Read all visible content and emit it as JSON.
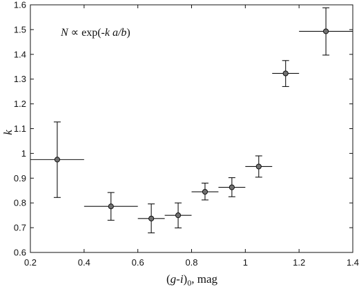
{
  "chart_data": {
    "type": "scatter",
    "xlabel_parts": [
      "(",
      "g-i",
      ")",
      "0",
      ", mag"
    ],
    "ylabel": "k",
    "annotation_parts": [
      "N",
      " ∝ exp(-",
      "k a/b",
      ")"
    ],
    "xlim": [
      0.2,
      1.4
    ],
    "ylim": [
      0.6,
      1.6
    ],
    "xticks": [
      "0.2",
      "0.4",
      "0.6",
      "0.8",
      "1",
      "1.2",
      "1.4"
    ],
    "yticks": [
      "0.6",
      "0.7",
      "0.8",
      "0.9",
      "1",
      "1.1",
      "1.2",
      "1.3",
      "1.4",
      "1.5",
      "1.6"
    ],
    "grid": false,
    "points": [
      {
        "x": 0.3,
        "y": 0.975,
        "x_lo": 0.2,
        "x_hi": 0.4,
        "y_lo": 0.822,
        "y_hi": 1.127
      },
      {
        "x": 0.5,
        "y": 0.786,
        "x_lo": 0.4,
        "x_hi": 0.6,
        "y_lo": 0.73,
        "y_hi": 0.842
      },
      {
        "x": 0.65,
        "y": 0.737,
        "x_lo": 0.6,
        "x_hi": 0.7,
        "y_lo": 0.679,
        "y_hi": 0.796
      },
      {
        "x": 0.75,
        "y": 0.75,
        "x_lo": 0.7,
        "x_hi": 0.8,
        "y_lo": 0.699,
        "y_hi": 0.8
      },
      {
        "x": 0.85,
        "y": 0.845,
        "x_lo": 0.8,
        "x_hi": 0.9,
        "y_lo": 0.812,
        "y_hi": 0.88
      },
      {
        "x": 0.95,
        "y": 0.863,
        "x_lo": 0.9,
        "x_hi": 1.0,
        "y_lo": 0.825,
        "y_hi": 0.902
      },
      {
        "x": 1.05,
        "y": 0.947,
        "x_lo": 1.0,
        "x_hi": 1.1,
        "y_lo": 0.904,
        "y_hi": 0.99
      },
      {
        "x": 1.15,
        "y": 1.323,
        "x_lo": 1.1,
        "x_hi": 1.2,
        "y_lo": 1.27,
        "y_hi": 1.375
      },
      {
        "x": 1.3,
        "y": 1.493,
        "x_lo": 1.2,
        "x_hi": 1.4,
        "y_lo": 1.397,
        "y_hi": 1.588
      }
    ],
    "colors": {
      "marker_fill": "#707070",
      "marker_edge": "#111111",
      "line": "#111111"
    }
  }
}
